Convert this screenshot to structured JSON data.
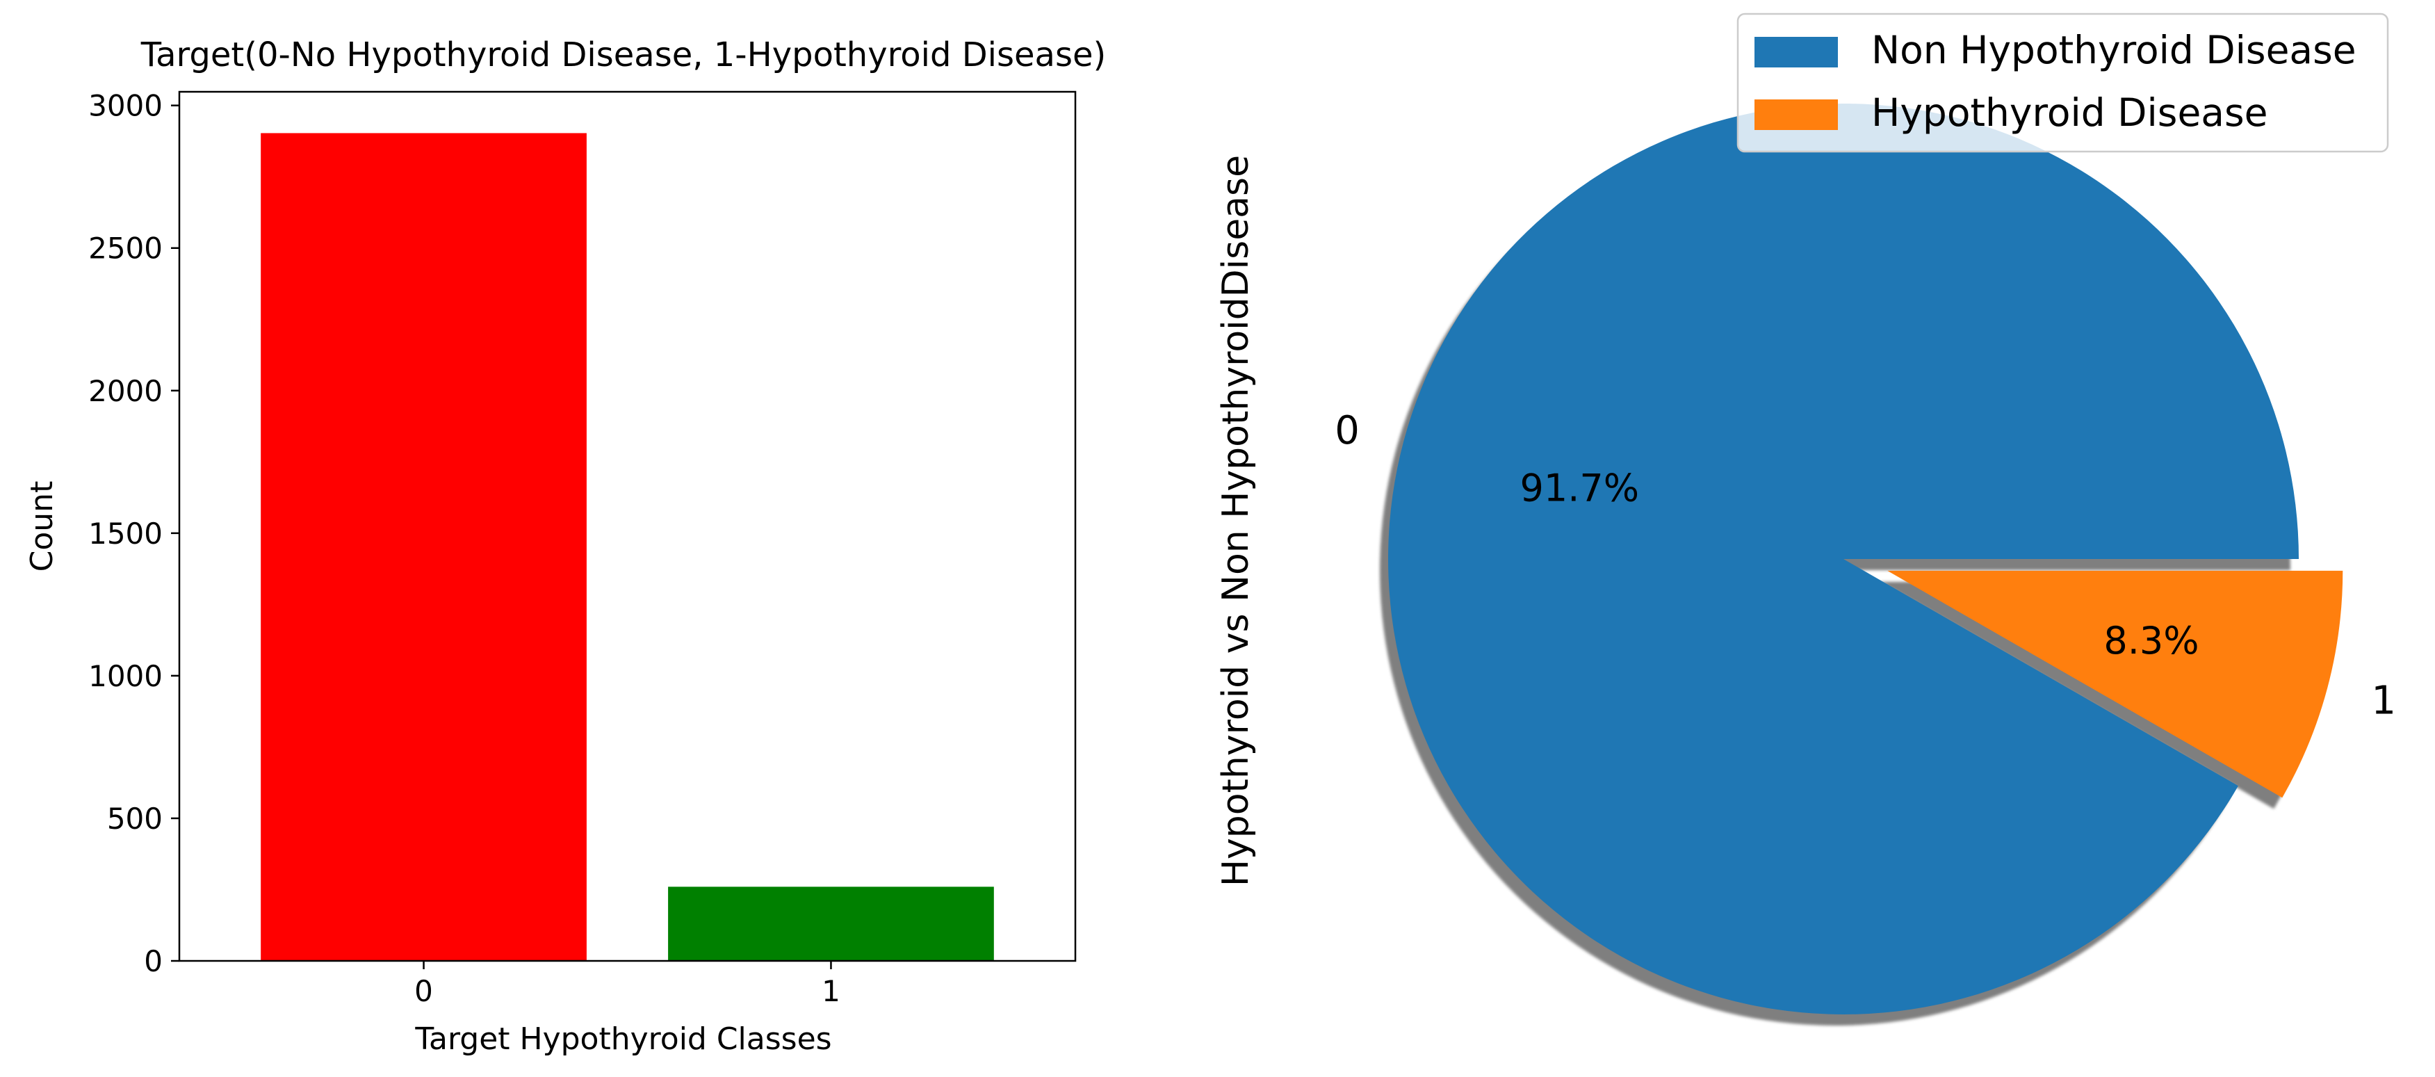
{
  "chart_data": [
    {
      "type": "bar",
      "title": "Target(0-No Hypothyroid Disease, 1-Hypothyroid Disease)",
      "xlabel": "Target Hypothyroid Classes",
      "ylabel": "Count",
      "categories": [
        "0",
        "1"
      ],
      "values": [
        2903,
        260
      ],
      "colors": [
        "#ff0000",
        "#008000"
      ],
      "yticks": [
        0,
        500,
        1000,
        1500,
        2000,
        2500,
        3000
      ],
      "ylim": [
        0,
        3048
      ],
      "grid": false
    },
    {
      "type": "pie",
      "ylabel": "Hypothyroid vs Non HypothyroidDisease",
      "labels": [
        "0",
        "1"
      ],
      "values": [
        91.7,
        8.3
      ],
      "autopct": [
        "91.7%",
        "8.3%"
      ],
      "explode": [
        0,
        0.1
      ],
      "shadow": true,
      "colors": [
        "#1f77b4",
        "#ff7f0e"
      ],
      "legend": {
        "placement": "top-right",
        "entries": [
          "Non Hypothyroid Disease",
          "Hypothyroid Disease"
        ]
      }
    }
  ]
}
